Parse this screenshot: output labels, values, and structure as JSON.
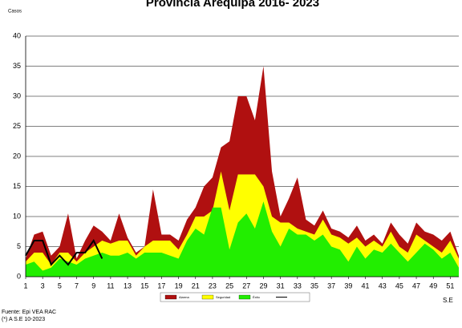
{
  "chart_data": {
    "type": "area",
    "title": "Provincia Arequipa  2016- 2023",
    "y_label": "Casos",
    "x_label": "S.E",
    "notes": [
      "Fuente:  Epi VEA RAC",
      "(*) A S.E 10-2023"
    ],
    "x": [
      1,
      2,
      3,
      4,
      5,
      6,
      7,
      8,
      9,
      10,
      11,
      12,
      13,
      14,
      15,
      16,
      17,
      18,
      19,
      20,
      21,
      22,
      23,
      24,
      25,
      26,
      27,
      28,
      29,
      30,
      31,
      32,
      33,
      34,
      35,
      36,
      37,
      38,
      39,
      40,
      41,
      42,
      43,
      44,
      45,
      46,
      47,
      48,
      49,
      50,
      51,
      52
    ],
    "xlim": [
      1,
      52
    ],
    "xticks": [
      1,
      3,
      5,
      7,
      9,
      11,
      13,
      15,
      17,
      19,
      21,
      23,
      25,
      27,
      29,
      31,
      33,
      35,
      37,
      39,
      41,
      43,
      45,
      47,
      49,
      51
    ],
    "ylim": [
      0,
      40
    ],
    "yticks": [
      0,
      5,
      10,
      15,
      20,
      25,
      30,
      35,
      40
    ],
    "grid": true,
    "series": [
      {
        "name": "Alarma",
        "color": "#b01010",
        "kind": "area",
        "values": [
          3,
          7,
          7.5,
          3.5,
          5,
          10.5,
          3,
          6,
          8.5,
          7.5,
          6,
          10.5,
          6.5,
          4,
          5,
          14.5,
          7,
          7,
          6,
          9.5,
          11.5,
          15,
          16.5,
          21.5,
          22.5,
          30,
          30,
          26,
          35,
          17.5,
          10,
          13,
          16.5,
          9.5,
          8.5,
          11,
          8,
          7.5,
          6.5,
          8.5,
          6,
          7,
          5.5,
          9,
          7,
          5.5,
          9,
          7.5,
          7,
          6,
          7.5,
          3.5
        ]
      },
      {
        "name": "Seguridad",
        "color": "#ffff00",
        "kind": "area",
        "values": [
          2.5,
          4,
          4,
          2,
          4,
          4,
          2.5,
          4,
          5,
          6,
          5.5,
          6,
          6,
          3.5,
          5,
          6,
          6,
          6,
          4.5,
          7,
          10,
          10,
          11,
          17.5,
          11,
          17,
          17,
          17,
          15,
          10,
          9,
          9,
          8,
          7.5,
          7,
          9.5,
          7,
          6.5,
          5.5,
          6.5,
          5,
          6,
          5,
          7.5,
          5,
          4,
          7,
          6,
          5,
          4,
          6,
          3
        ]
      },
      {
        "name": "Éxito",
        "color": "#22ee00",
        "kind": "area",
        "values": [
          2,
          2.5,
          1,
          1.5,
          3,
          2.5,
          2,
          3,
          3.5,
          4,
          3.5,
          3.5,
          4,
          3,
          4,
          4,
          4,
          3.5,
          3,
          6,
          8,
          7,
          11.5,
          11.5,
          4.5,
          9,
          10.5,
          8,
          12.5,
          7.5,
          5,
          8,
          7,
          7,
          6,
          7,
          5,
          4.5,
          2.5,
          5,
          3,
          4.5,
          4,
          5.5,
          4,
          2.5,
          4,
          5.5,
          4.5,
          3,
          4,
          1.5
        ]
      },
      {
        "color": "#000000",
        "kind": "line",
        "values": [
          3.5,
          6,
          6,
          2,
          3.5,
          2,
          4,
          4,
          6,
          3,
          null,
          null,
          null,
          null,
          null,
          null,
          null,
          null,
          null,
          null,
          null,
          null,
          null,
          null,
          null,
          null,
          null,
          null,
          null,
          null,
          null,
          null,
          null,
          null,
          null,
          null,
          null,
          null,
          null,
          null,
          null,
          null,
          null,
          null,
          null,
          null,
          null,
          null,
          null,
          null,
          null,
          null
        ]
      }
    ]
  }
}
